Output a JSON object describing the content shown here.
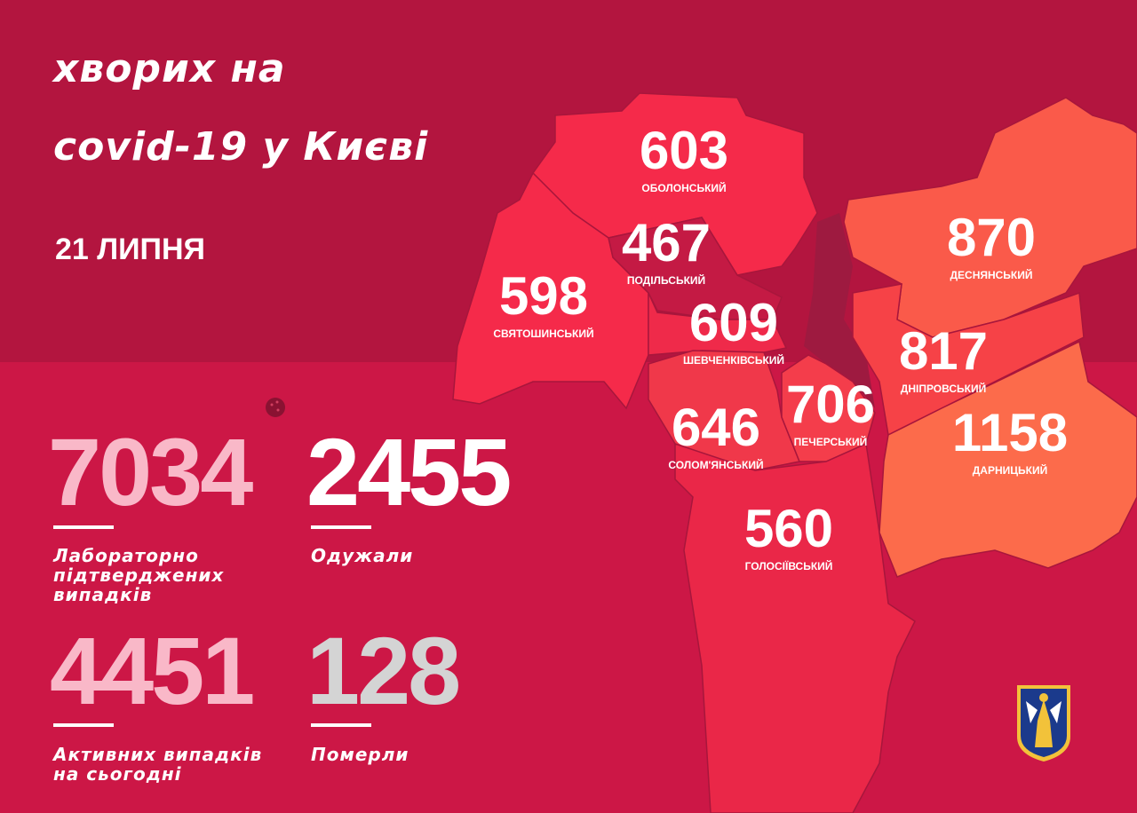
{
  "header": {
    "title_line1": "хворих на",
    "title_line2": "covid-19 у Києві",
    "date": "21 ЛИПНЯ"
  },
  "stats": [
    {
      "value": "7034",
      "label": [
        "Лабораторно",
        "підтверджених",
        "випадків"
      ],
      "color": "#f9b8c8"
    },
    {
      "value": "2455",
      "label": [
        "Одужали"
      ],
      "color": "#ffffff"
    },
    {
      "value": "4451",
      "label": [
        "Активних випадків",
        "на сьогодні"
      ],
      "color": "#f9b8c8"
    },
    {
      "value": "128",
      "label": [
        "Померли"
      ],
      "color": "#d4d4d4"
    }
  ],
  "districts": [
    {
      "name": "ОБОЛОНСЬКИЙ",
      "value": "603",
      "color": "#f52a4a"
    },
    {
      "name": "ПОДІЛЬСЬКИЙ",
      "value": "467",
      "color": "#c41a44"
    },
    {
      "name": "СВЯТОШИНСЬКИЙ",
      "value": "598",
      "color": "#f52a4a"
    },
    {
      "name": "ШЕВЧЕНКІВСЬКИЙ",
      "value": "609",
      "color": "#ef2a4a"
    },
    {
      "name": "ДЕСНЯНСЬКИЙ",
      "value": "870",
      "color": "#fa5a4a"
    },
    {
      "name": "ДНІПРОВСЬКИЙ",
      "value": "817",
      "color": "#f64247"
    },
    {
      "name": "ПЕЧЕРСЬКИЙ",
      "value": "706",
      "color": "#f43d4b"
    },
    {
      "name": "СОЛОМ'ЯНСЬКИЙ",
      "value": "646",
      "color": "#f0384a"
    },
    {
      "name": "ДАРНИЦЬКИЙ",
      "value": "1158",
      "color": "#fc6b4b"
    },
    {
      "name": "ГОЛОСІЇВСЬКИЙ",
      "value": "560",
      "color": "#ea2748"
    }
  ],
  "colors": {
    "background": "#b3153f",
    "panel": "#cc1746",
    "river": "#9e1a40",
    "emblem_blue": "#1b3a8c",
    "emblem_gold": "#f2c23a"
  }
}
